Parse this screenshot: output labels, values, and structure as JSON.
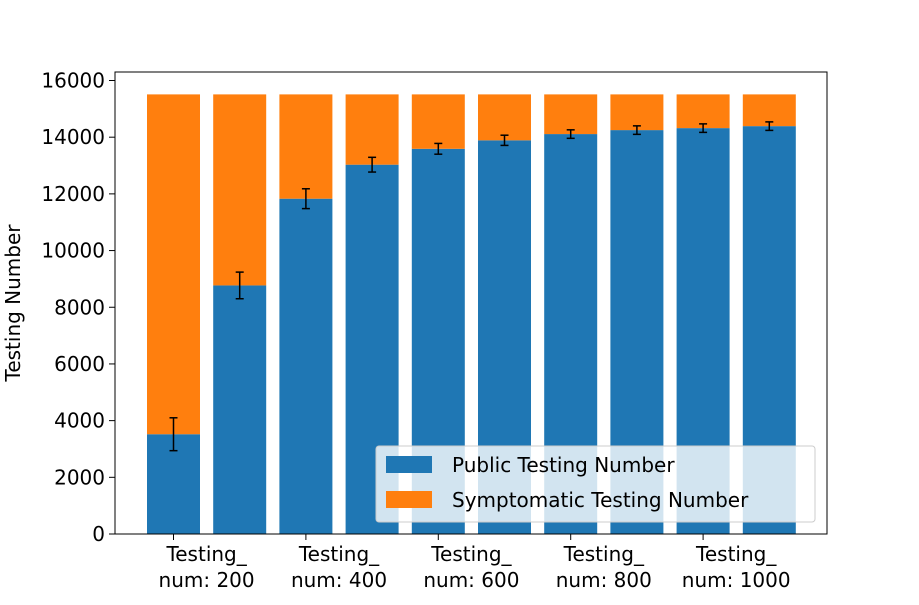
{
  "chart_data": {
    "type": "bar",
    "stacked": true,
    "title": "",
    "xlabel": "",
    "ylabel": "Testing Number",
    "ylim": [
      0,
      16300
    ],
    "yticks": [
      0,
      2000,
      4000,
      6000,
      8000,
      10000,
      12000,
      14000,
      16000
    ],
    "categories": [
      "",
      "",
      "",
      "",
      "",
      "",
      "",
      "",
      "",
      ""
    ],
    "xtick_labels": [
      {
        "line1": "Testing_",
        "line2": "num: 200"
      },
      {
        "line1": "Testing_",
        "line2": "num: 400"
      },
      {
        "line1": "Testing_",
        "line2": "num: 600"
      },
      {
        "line1": "Testing_",
        "line2": "num: 800"
      },
      {
        "line1": "Testing_",
        "line2": "num: 1000"
      }
    ],
    "series": [
      {
        "name": "Public Testing Number",
        "color": "#1f77b4",
        "values": [
          3520,
          8770,
          11830,
          13030,
          13590,
          13890,
          14110,
          14250,
          14320,
          14390
        ],
        "errors": [
          580,
          470,
          350,
          260,
          190,
          180,
          150,
          150,
          150,
          150
        ]
      },
      {
        "name": "Symptomatic Testing Number",
        "color": "#ff7f0e",
        "values": [
          11990,
          6740,
          3680,
          2480,
          1920,
          1620,
          1400,
          1260,
          1190,
          1120
        ]
      }
    ],
    "legend": {
      "position": "lower-right"
    },
    "grid": false
  }
}
